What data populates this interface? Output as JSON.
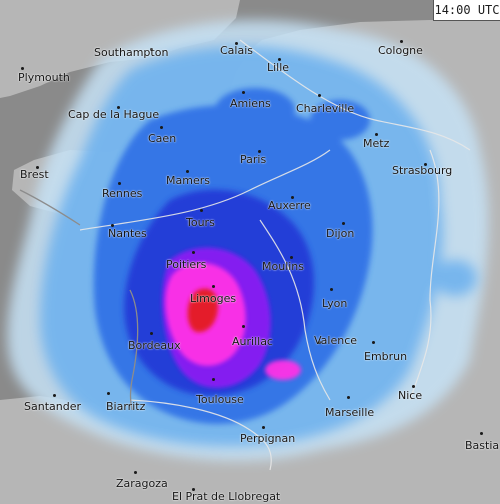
{
  "map": {
    "timestamp": "14:00 UTC",
    "colors": {
      "sea": "#8a8a8a",
      "land": "#b6b6b6",
      "precip_light": "#c6e2f6",
      "precip_low": "#6fb2ee",
      "precip_medium": "#2f6fe6",
      "precip_moderate": "#2038d6",
      "precip_heavy": "#8a1ff2",
      "precip_intense": "#ff33e6",
      "precip_extreme": "#e41a2a"
    },
    "cities": [
      {
        "id": "southampton",
        "label": "Southampton"
      },
      {
        "id": "calais",
        "label": "Calais"
      },
      {
        "id": "cologne",
        "label": "Cologne"
      },
      {
        "id": "plymouth",
        "label": "Plymouth"
      },
      {
        "id": "lille",
        "label": "Lille"
      },
      {
        "id": "cap-de-la-hague",
        "label": "Cap de la Hague"
      },
      {
        "id": "amiens",
        "label": "Amiens"
      },
      {
        "id": "charleville",
        "label": "Charleville"
      },
      {
        "id": "caen",
        "label": "Caen"
      },
      {
        "id": "metz",
        "label": "Metz"
      },
      {
        "id": "paris",
        "label": "Paris"
      },
      {
        "id": "brest",
        "label": "Brest"
      },
      {
        "id": "mamers",
        "label": "Mamers"
      },
      {
        "id": "strasbourg",
        "label": "Strasbourg"
      },
      {
        "id": "rennes",
        "label": "Rennes"
      },
      {
        "id": "auxerre",
        "label": "Auxerre"
      },
      {
        "id": "tours",
        "label": "Tours"
      },
      {
        "id": "nantes",
        "label": "Nantes"
      },
      {
        "id": "dijon",
        "label": "Dijon"
      },
      {
        "id": "poitiers",
        "label": "Poitiers"
      },
      {
        "id": "moulins",
        "label": "Moulins"
      },
      {
        "id": "limoges",
        "label": "Limoges"
      },
      {
        "id": "lyon",
        "label": "Lyon"
      },
      {
        "id": "bordeaux",
        "label": "Bordeaux"
      },
      {
        "id": "aurillac",
        "label": "Aurillac"
      },
      {
        "id": "valence",
        "label": "Valence"
      },
      {
        "id": "embrun",
        "label": "Embrun"
      },
      {
        "id": "santander",
        "label": "Santander"
      },
      {
        "id": "biarritz",
        "label": "Biarritz"
      },
      {
        "id": "toulouse",
        "label": "Toulouse"
      },
      {
        "id": "nice",
        "label": "Nice"
      },
      {
        "id": "marseille",
        "label": "Marseille"
      },
      {
        "id": "perpignan",
        "label": "Perpignan"
      },
      {
        "id": "bastia",
        "label": "Bastia"
      },
      {
        "id": "zaragoza",
        "label": "Zaragoza"
      },
      {
        "id": "el-prat",
        "label": "El Prat de Llobregat"
      }
    ]
  }
}
